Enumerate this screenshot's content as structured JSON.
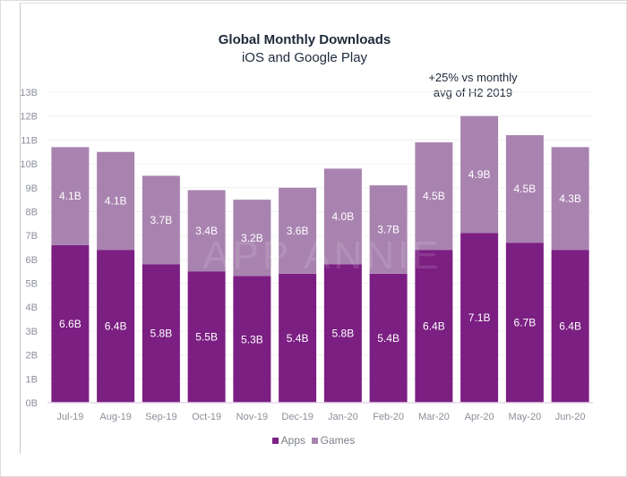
{
  "chart_data": {
    "type": "bar",
    "stacked": true,
    "title": "Global Monthly Downloads",
    "subtitle": "iOS and Google Play",
    "annotation": "+25% vs monthly avg of H2 2019",
    "annotation_lines": [
      "+25% vs monthly",
      "avg of H2 2019"
    ],
    "watermark": "APP ANNIE",
    "categories": [
      "Jul-19",
      "Aug-19",
      "Sep-19",
      "Oct-19",
      "Nov-19",
      "Dec-19",
      "Jan-20",
      "Feb-20",
      "Mar-20",
      "Apr-20",
      "May-20",
      "Jun-20"
    ],
    "series": [
      {
        "name": "Apps",
        "color": "#7b1f82",
        "values": [
          6.6,
          6.4,
          5.8,
          5.5,
          5.3,
          5.4,
          5.8,
          5.4,
          6.4,
          7.1,
          6.7,
          6.4
        ],
        "labels": [
          "6.6B",
          "6.4B",
          "5.8B",
          "5.5B",
          "5.3B",
          "5.4B",
          "5.8B",
          "5.4B",
          "6.4B",
          "7.1B",
          "6.7B",
          "6.4B"
        ]
      },
      {
        "name": "Games",
        "color": "#a983b0",
        "values": [
          4.1,
          4.1,
          3.7,
          3.4,
          3.2,
          3.6,
          4.0,
          3.7,
          4.5,
          4.9,
          4.5,
          4.3
        ],
        "labels": [
          "4.1B",
          "4.1B",
          "3.7B",
          "3.4B",
          "3.2B",
          "3.6B",
          "4.0B",
          "3.7B",
          "4.5B",
          "4.9B",
          "4.5B",
          "4.3B"
        ]
      }
    ],
    "ylim": [
      0,
      13
    ],
    "yticks": [
      "0B",
      "1B",
      "2B",
      "3B",
      "4B",
      "5B",
      "6B",
      "7B",
      "8B",
      "9B",
      "10B",
      "11B",
      "12B",
      "13B"
    ],
    "xlabel": "",
    "ylabel": "",
    "grid": true,
    "legend_position": "bottom"
  }
}
